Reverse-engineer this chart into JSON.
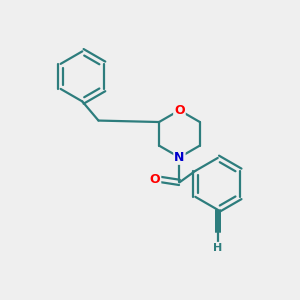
{
  "background_color": "#efefef",
  "bond_color": "#2d7d7d",
  "bond_width": 1.6,
  "atom_colors": {
    "O": "#ff0000",
    "N": "#0000cc",
    "H": "#2d7d7d"
  },
  "font_size": 9,
  "fig_size": [
    3.0,
    3.0
  ],
  "dpi": 100
}
